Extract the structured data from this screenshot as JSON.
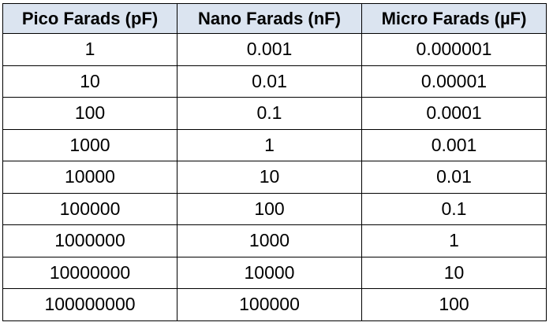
{
  "table": {
    "headers": [
      "Pico Farads (pF)",
      "Nano Farads (nF)",
      "Micro Farads (µF)"
    ],
    "rows": [
      [
        "1",
        "0.001",
        "0.000001"
      ],
      [
        "10",
        "0.01",
        "0.00001"
      ],
      [
        "100",
        "0.1",
        "0.0001"
      ],
      [
        "1000",
        "1",
        "0.001"
      ],
      [
        "10000",
        "10",
        "0.01"
      ],
      [
        "100000",
        "100",
        "0.1"
      ],
      [
        "1000000",
        "1000",
        "1"
      ],
      [
        "10000000",
        "10000",
        "10"
      ],
      [
        "100000000",
        "100000",
        "100"
      ]
    ]
  },
  "colors": {
    "header_background": "#dbe4f0",
    "border": "#000000",
    "text": "#000000"
  }
}
